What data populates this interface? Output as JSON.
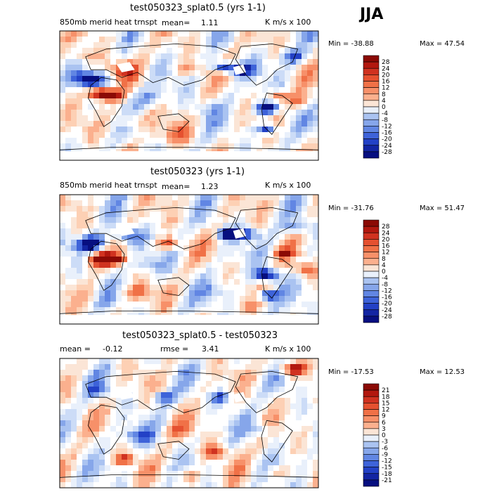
{
  "season": "JJA",
  "units": "K m/s x 100",
  "panels": [
    {
      "title": "test050323_splat0.5 (yrs 1-1)",
      "variable": "850mb merid heat trnspt",
      "stat_label": "mean=",
      "stat_value": "1.11",
      "min_label": "Min = -38.88",
      "max_label": "Max =  47.54",
      "levels": [
        "28",
        "24",
        "20",
        "16",
        "12",
        "8",
        "4",
        "0",
        "-4",
        "-8",
        "-12",
        "-16",
        "-20",
        "-24",
        "-28"
      ]
    },
    {
      "title": "test050323 (yrs 1-1)",
      "variable": "850mb merid heat trnspt",
      "stat_label": "mean=",
      "stat_value": "1.23",
      "min_label": "Min = -31.76",
      "max_label": "Max =  51.47",
      "levels": [
        "28",
        "24",
        "20",
        "16",
        "12",
        "8",
        "4",
        "0",
        "-4",
        "-8",
        "-12",
        "-16",
        "-20",
        "-24",
        "-28"
      ]
    },
    {
      "title": "test050323_splat0.5 - test050323",
      "stat_label": "mean =",
      "stat_value": "-0.12",
      "rmse_label": "rmse =",
      "rmse_value": "3.41",
      "min_label": "Min = -17.53",
      "max_label": "Max =  12.53",
      "levels": [
        "21",
        "18",
        "15",
        "12",
        "9",
        "6",
        "3",
        "0",
        "-3",
        "-6",
        "-9",
        "-12",
        "-15",
        "-18",
        "-21"
      ]
    }
  ],
  "colors": {
    "pos": [
      "#fbe5d6",
      "#fdd0b4",
      "#fbb08e",
      "#f79069",
      "#f07147",
      "#e55130",
      "#d03220",
      "#b2180f",
      "#8b0a05"
    ],
    "neg": [
      "#e9f0fb",
      "#ccdcf7",
      "#aac3f1",
      "#86a6ea",
      "#6186e3",
      "#3e63d9",
      "#2341c6",
      "#1325a3",
      "#070f80"
    ],
    "zero": "#ffffff"
  },
  "chart_data": [
    {
      "type": "heatmap",
      "title": "test050323_splat0.5 (yrs 1-1)",
      "field": "850mb merid heat trnspt",
      "units": "K m/s x 100",
      "mean": 1.11,
      "min": -38.88,
      "max": 47.54,
      "contour_levels": [
        -28,
        -24,
        -20,
        -16,
        -12,
        -8,
        -4,
        0,
        4,
        8,
        12,
        16,
        20,
        24,
        28
      ]
    },
    {
      "type": "heatmap",
      "title": "test050323 (yrs 1-1)",
      "field": "850mb merid heat trnspt",
      "units": "K m/s x 100",
      "mean": 1.23,
      "min": -31.76,
      "max": 51.47,
      "contour_levels": [
        -28,
        -24,
        -20,
        -16,
        -12,
        -8,
        -4,
        0,
        4,
        8,
        12,
        16,
        20,
        24,
        28
      ]
    },
    {
      "type": "heatmap",
      "title": "test050323_splat0.5 - test050323",
      "units": "K m/s x 100",
      "mean": -0.12,
      "rmse": 3.41,
      "min": -17.53,
      "max": 12.53,
      "contour_levels": [
        -21,
        -18,
        -15,
        -12,
        -9,
        -6,
        -3,
        0,
        3,
        6,
        9,
        12,
        15,
        18,
        21
      ]
    }
  ]
}
